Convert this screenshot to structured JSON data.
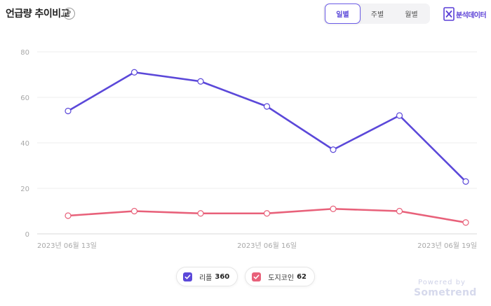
{
  "header": {
    "title": "언급량 추이비교",
    "help_icon": "?",
    "period_tabs": [
      {
        "label": "일별",
        "active": true
      },
      {
        "label": "주별",
        "active": false
      },
      {
        "label": "월별",
        "active": false
      }
    ],
    "analysis_button": {
      "label": "분석데이터",
      "icon": "excel-icon"
    }
  },
  "chart_data": {
    "type": "line",
    "x_labels": [
      "2023년 06월 13일",
      "",
      "",
      "2023년 06월 16일",
      "",
      "",
      "2023년 06월 19일"
    ],
    "x": [
      "2023-06-13",
      "2023-06-14",
      "2023-06-15",
      "2023-06-16",
      "2023-06-17",
      "2023-06-18",
      "2023-06-19"
    ],
    "ylim": [
      0,
      80
    ],
    "yticks": [
      0,
      20,
      40,
      60,
      80
    ],
    "grid": true,
    "series": [
      {
        "name": "리플",
        "total": 360,
        "color": "#5b48d9",
        "values": [
          54,
          71,
          67,
          56,
          37,
          52,
          23
        ]
      },
      {
        "name": "도지코인",
        "total": 62,
        "color": "#e8617a",
        "values": [
          8,
          10,
          9,
          9,
          11,
          10,
          5
        ]
      }
    ],
    "legend_position": "bottom"
  },
  "footer": {
    "powered_by": "Powered by",
    "brand": "Sometrend"
  }
}
